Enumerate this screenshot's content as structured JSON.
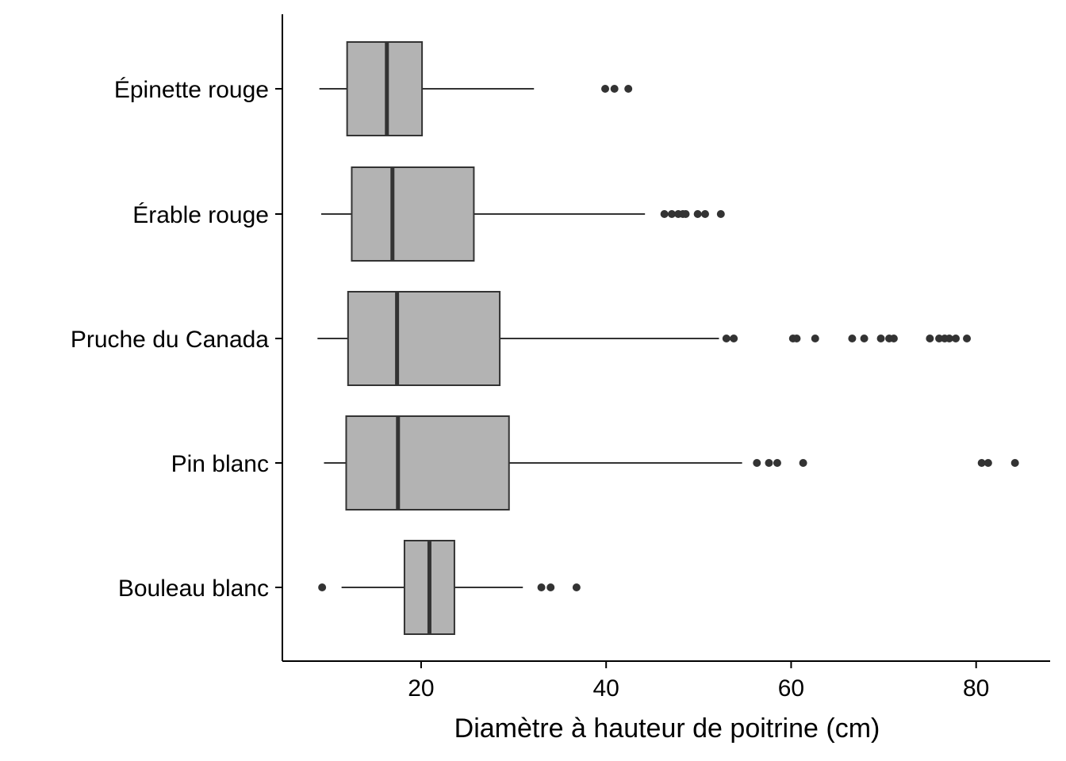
{
  "chart_data": {
    "type": "boxplot",
    "orientation": "horizontal",
    "title": "",
    "xlabel": "Diamètre à hauteur de poitrine (cm)",
    "ylabel": "",
    "xlim": [
      5,
      88
    ],
    "xticks": [
      20,
      40,
      60,
      80
    ],
    "grid": false,
    "legend": "none",
    "colors": {
      "box_fill": "#b3b3b3",
      "outline": "#333333",
      "outlier": "#333333",
      "axis": "#000000"
    },
    "categories": [
      "Épinette rouge",
      "Érable rouge",
      "Pruche du Canada",
      "Pin blanc",
      "Bouleau blanc"
    ],
    "boxes": [
      {
        "category": "Épinette rouge",
        "whisker_low": 9.0,
        "q1": 12.0,
        "median": 16.3,
        "q3": 20.1,
        "whisker_high": 32.2,
        "outliers": [
          39.9,
          40.9,
          42.4
        ]
      },
      {
        "category": "Érable rouge",
        "whisker_low": 9.2,
        "q1": 12.5,
        "median": 16.9,
        "q3": 25.7,
        "whisker_high": 44.2,
        "outliers": [
          46.3,
          47.1,
          47.8,
          48.3,
          48.6,
          49.9,
          50.7,
          52.4
        ]
      },
      {
        "category": "Pruche du Canada",
        "whisker_low": 8.8,
        "q1": 12.1,
        "median": 17.4,
        "q3": 28.5,
        "whisker_high": 52.2,
        "outliers": [
          53.0,
          53.8,
          60.2,
          60.6,
          62.6,
          66.6,
          67.9,
          69.7,
          70.6,
          71.1,
          75.0,
          76.0,
          76.6,
          77.1,
          77.8,
          79.0
        ]
      },
      {
        "category": "Pin blanc",
        "whisker_low": 9.5,
        "q1": 11.9,
        "median": 17.5,
        "q3": 29.5,
        "whisker_high": 54.7,
        "outliers": [
          56.3,
          57.6,
          58.5,
          61.3,
          80.6,
          81.3,
          84.2
        ]
      },
      {
        "category": "Bouleau blanc",
        "whisker_low": 11.4,
        "q1": 18.2,
        "median": 20.9,
        "q3": 23.6,
        "whisker_high": 31.0,
        "outliers": [
          9.3,
          33.0,
          34.0,
          36.8
        ]
      }
    ]
  }
}
